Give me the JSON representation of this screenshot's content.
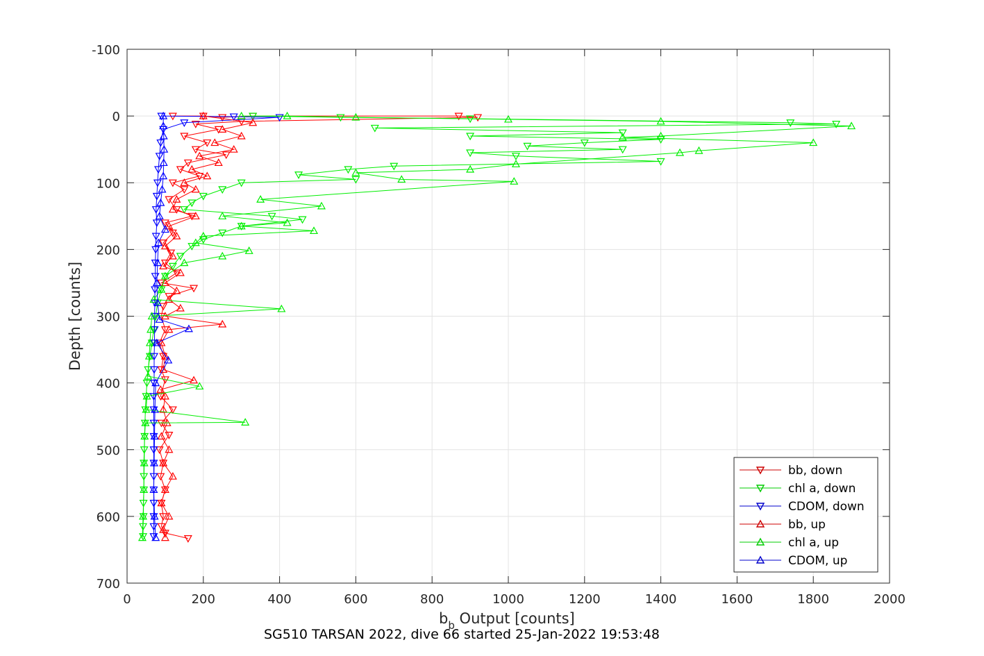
{
  "chart_data": {
    "type": "line",
    "title": "",
    "xlabel": "b_b Output [counts]",
    "xlabel_main": "b",
    "xlabel_sub": "b",
    "xlabel_rest": " Output [counts]",
    "ylabel": "Depth [counts]",
    "xlim": [
      0,
      2000
    ],
    "ylim": [
      -100,
      700
    ],
    "y_reversed": true,
    "grid": true,
    "legend_position": "bottom-right",
    "xticks": [
      "0",
      "200",
      "400",
      "600",
      "800",
      "1000",
      "1200",
      "1400",
      "1600",
      "1800",
      "2000"
    ],
    "yticks": [
      "-100",
      "0",
      "100",
      "200",
      "300",
      "400",
      "500",
      "600",
      "700"
    ],
    "xtick_values": [
      0,
      200,
      400,
      600,
      800,
      1000,
      1200,
      1400,
      1600,
      1800,
      2000
    ],
    "ytick_values": [
      -100,
      0,
      100,
      200,
      300,
      400,
      500,
      600,
      700
    ],
    "series": [
      {
        "name": "bb, down",
        "color": "#ff0000",
        "marker": "down-triangle",
        "points": [
          [
            120,
            0
          ],
          [
            200,
            0
          ],
          [
            250,
            2
          ],
          [
            330,
            0
          ],
          [
            870,
            0
          ],
          [
            920,
            2
          ],
          [
            300,
            8
          ],
          [
            180,
            12
          ],
          [
            240,
            20
          ],
          [
            150,
            30
          ],
          [
            210,
            40
          ],
          [
            180,
            50
          ],
          [
            260,
            58
          ],
          [
            160,
            70
          ],
          [
            140,
            80
          ],
          [
            190,
            90
          ],
          [
            120,
            100
          ],
          [
            150,
            110
          ],
          [
            110,
            125
          ],
          [
            130,
            140
          ],
          [
            170,
            150
          ],
          [
            100,
            160
          ],
          [
            120,
            175
          ],
          [
            95,
            190
          ],
          [
            115,
            205
          ],
          [
            100,
            220
          ],
          [
            130,
            235
          ],
          [
            90,
            250
          ],
          [
            175,
            258
          ],
          [
            110,
            270
          ],
          [
            95,
            285
          ],
          [
            90,
            300
          ],
          [
            100,
            320
          ],
          [
            85,
            340
          ],
          [
            95,
            360
          ],
          [
            90,
            380
          ],
          [
            100,
            395
          ],
          [
            88,
            420
          ],
          [
            120,
            440
          ],
          [
            90,
            460
          ],
          [
            110,
            478
          ],
          [
            85,
            500
          ],
          [
            95,
            520
          ],
          [
            88,
            540
          ],
          [
            100,
            560
          ],
          [
            90,
            580
          ],
          [
            95,
            600
          ],
          [
            90,
            615
          ],
          [
            100,
            625
          ],
          [
            160,
            633
          ]
        ]
      },
      {
        "name": "chl a, down",
        "color": "#00ee00",
        "marker": "down-triangle",
        "points": [
          [
            330,
            0
          ],
          [
            560,
            2
          ],
          [
            900,
            4
          ],
          [
            1740,
            10
          ],
          [
            1860,
            12
          ],
          [
            650,
            18
          ],
          [
            1300,
            25
          ],
          [
            900,
            30
          ],
          [
            1400,
            35
          ],
          [
            1200,
            40
          ],
          [
            1050,
            45
          ],
          [
            1300,
            50
          ],
          [
            900,
            55
          ],
          [
            1020,
            60
          ],
          [
            1400,
            68
          ],
          [
            700,
            75
          ],
          [
            580,
            80
          ],
          [
            450,
            88
          ],
          [
            600,
            95
          ],
          [
            300,
            100
          ],
          [
            250,
            110
          ],
          [
            200,
            120
          ],
          [
            170,
            130
          ],
          [
            150,
            140
          ],
          [
            380,
            150
          ],
          [
            460,
            155
          ],
          [
            300,
            165
          ],
          [
            250,
            175
          ],
          [
            200,
            185
          ],
          [
            170,
            195
          ],
          [
            140,
            210
          ],
          [
            120,
            225
          ],
          [
            100,
            240
          ],
          [
            90,
            260
          ],
          [
            80,
            280
          ],
          [
            75,
            300
          ],
          [
            70,
            320
          ],
          [
            65,
            340
          ],
          [
            60,
            360
          ],
          [
            55,
            380
          ],
          [
            52,
            400
          ],
          [
            50,
            420
          ],
          [
            48,
            440
          ],
          [
            47,
            460
          ],
          [
            46,
            480
          ],
          [
            45,
            500
          ],
          [
            44,
            520
          ],
          [
            44,
            540
          ],
          [
            44,
            560
          ],
          [
            43,
            580
          ],
          [
            43,
            600
          ],
          [
            42,
            615
          ],
          [
            42,
            630
          ]
        ]
      },
      {
        "name": "CDOM, down",
        "color": "#0000ff",
        "marker": "down-triangle",
        "points": [
          [
            90,
            0
          ],
          [
            280,
            1
          ],
          [
            400,
            2
          ],
          [
            150,
            10
          ],
          [
            95,
            20
          ],
          [
            88,
            40
          ],
          [
            85,
            60
          ],
          [
            82,
            80
          ],
          [
            80,
            100
          ],
          [
            78,
            120
          ],
          [
            76,
            140
          ],
          [
            78,
            160
          ],
          [
            76,
            180
          ],
          [
            75,
            200
          ],
          [
            74,
            220
          ],
          [
            74,
            240
          ],
          [
            73,
            260
          ],
          [
            73,
            280
          ],
          [
            72,
            300
          ],
          [
            72,
            320
          ],
          [
            72,
            340
          ],
          [
            71,
            360
          ],
          [
            71,
            380
          ],
          [
            71,
            400
          ],
          [
            70,
            420
          ],
          [
            70,
            440
          ],
          [
            70,
            460
          ],
          [
            70,
            480
          ],
          [
            70,
            500
          ],
          [
            70,
            520
          ],
          [
            70,
            540
          ],
          [
            70,
            560
          ],
          [
            70,
            580
          ],
          [
            70,
            600
          ],
          [
            70,
            615
          ],
          [
            70,
            630
          ]
        ]
      },
      {
        "name": "bb, up",
        "color": "#ff0000",
        "marker": "up-triangle",
        "points": [
          [
            100,
            632
          ],
          [
            95,
            620
          ],
          [
            110,
            600
          ],
          [
            90,
            580
          ],
          [
            100,
            560
          ],
          [
            120,
            540
          ],
          [
            95,
            520
          ],
          [
            110,
            500
          ],
          [
            90,
            480
          ],
          [
            105,
            460
          ],
          [
            95,
            440
          ],
          [
            100,
            420
          ],
          [
            88,
            410
          ],
          [
            175,
            396
          ],
          [
            95,
            380
          ],
          [
            100,
            360
          ],
          [
            90,
            340
          ],
          [
            110,
            320
          ],
          [
            250,
            312
          ],
          [
            100,
            300
          ],
          [
            140,
            288
          ],
          [
            110,
            275
          ],
          [
            130,
            262
          ],
          [
            100,
            250
          ],
          [
            140,
            235
          ],
          [
            95,
            225
          ],
          [
            120,
            210
          ],
          [
            100,
            195
          ],
          [
            130,
            180
          ],
          [
            110,
            165
          ],
          [
            180,
            150
          ],
          [
            120,
            140
          ],
          [
            130,
            125
          ],
          [
            180,
            110
          ],
          [
            150,
            100
          ],
          [
            210,
            90
          ],
          [
            170,
            80
          ],
          [
            240,
            70
          ],
          [
            190,
            60
          ],
          [
            280,
            50
          ],
          [
            230,
            40
          ],
          [
            300,
            30
          ],
          [
            250,
            20
          ],
          [
            330,
            10
          ],
          [
            200,
            0
          ]
        ]
      },
      {
        "name": "chl a, up",
        "color": "#00ee00",
        "marker": "up-triangle",
        "points": [
          [
            40,
            632
          ],
          [
            42,
            600
          ],
          [
            44,
            560
          ],
          [
            45,
            520
          ],
          [
            46,
            480
          ],
          [
            48,
            460
          ],
          [
            310,
            459
          ],
          [
            50,
            440
          ],
          [
            52,
            420
          ],
          [
            190,
            405
          ],
          [
            55,
            390
          ],
          [
            58,
            360
          ],
          [
            60,
            340
          ],
          [
            62,
            320
          ],
          [
            65,
            300
          ],
          [
            405,
            289
          ],
          [
            70,
            275
          ],
          [
            90,
            260
          ],
          [
            100,
            240
          ],
          [
            150,
            220
          ],
          [
            250,
            210
          ],
          [
            320,
            202
          ],
          [
            180,
            190
          ],
          [
            200,
            180
          ],
          [
            490,
            172
          ],
          [
            300,
            165
          ],
          [
            420,
            160
          ],
          [
            250,
            150
          ],
          [
            510,
            135
          ],
          [
            350,
            125
          ],
          [
            1015,
            98
          ],
          [
            720,
            95
          ],
          [
            600,
            85
          ],
          [
            900,
            80
          ],
          [
            1020,
            72
          ],
          [
            1450,
            55
          ],
          [
            1500,
            52
          ],
          [
            1800,
            40
          ],
          [
            1300,
            32
          ],
          [
            1400,
            30
          ],
          [
            1900,
            15
          ],
          [
            1400,
            8
          ],
          [
            1000,
            5
          ],
          [
            600,
            2
          ],
          [
            420,
            0
          ],
          [
            300,
            0
          ]
        ]
      },
      {
        "name": "CDOM, up",
        "color": "#0000ff",
        "marker": "up-triangle",
        "points": [
          [
            75,
            632
          ],
          [
            72,
            600
          ],
          [
            70,
            560
          ],
          [
            71,
            520
          ],
          [
            72,
            480
          ],
          [
            73,
            440
          ],
          [
            75,
            400
          ],
          [
            108,
            366
          ],
          [
            78,
            340
          ],
          [
            162,
            319
          ],
          [
            85,
            305
          ],
          [
            80,
            280
          ],
          [
            78,
            250
          ],
          [
            80,
            220
          ],
          [
            82,
            190
          ],
          [
            100,
            170
          ],
          [
            85,
            150
          ],
          [
            88,
            130
          ],
          [
            92,
            110
          ],
          [
            95,
            90
          ],
          [
            96,
            70
          ],
          [
            97,
            50
          ],
          [
            96,
            30
          ],
          [
            95,
            15
          ],
          [
            95,
            0
          ]
        ]
      }
    ]
  },
  "caption": "SG510 TARSAN 2022, dive 66 started 25-Jan-2022 19:53:48",
  "legend": {
    "items": [
      {
        "label": "bb, down",
        "color": "#cc0000",
        "marker": "down-triangle"
      },
      {
        "label": "chl a, down",
        "color": "#00cc00",
        "marker": "down-triangle"
      },
      {
        "label": "CDOM, down",
        "color": "#0000cc",
        "marker": "down-triangle"
      },
      {
        "label": "bb, up",
        "color": "#cc0000",
        "marker": "up-triangle"
      },
      {
        "label": "chl a, up",
        "color": "#00cc00",
        "marker": "up-triangle"
      },
      {
        "label": "CDOM, up",
        "color": "#0000cc",
        "marker": "up-triangle"
      }
    ]
  }
}
